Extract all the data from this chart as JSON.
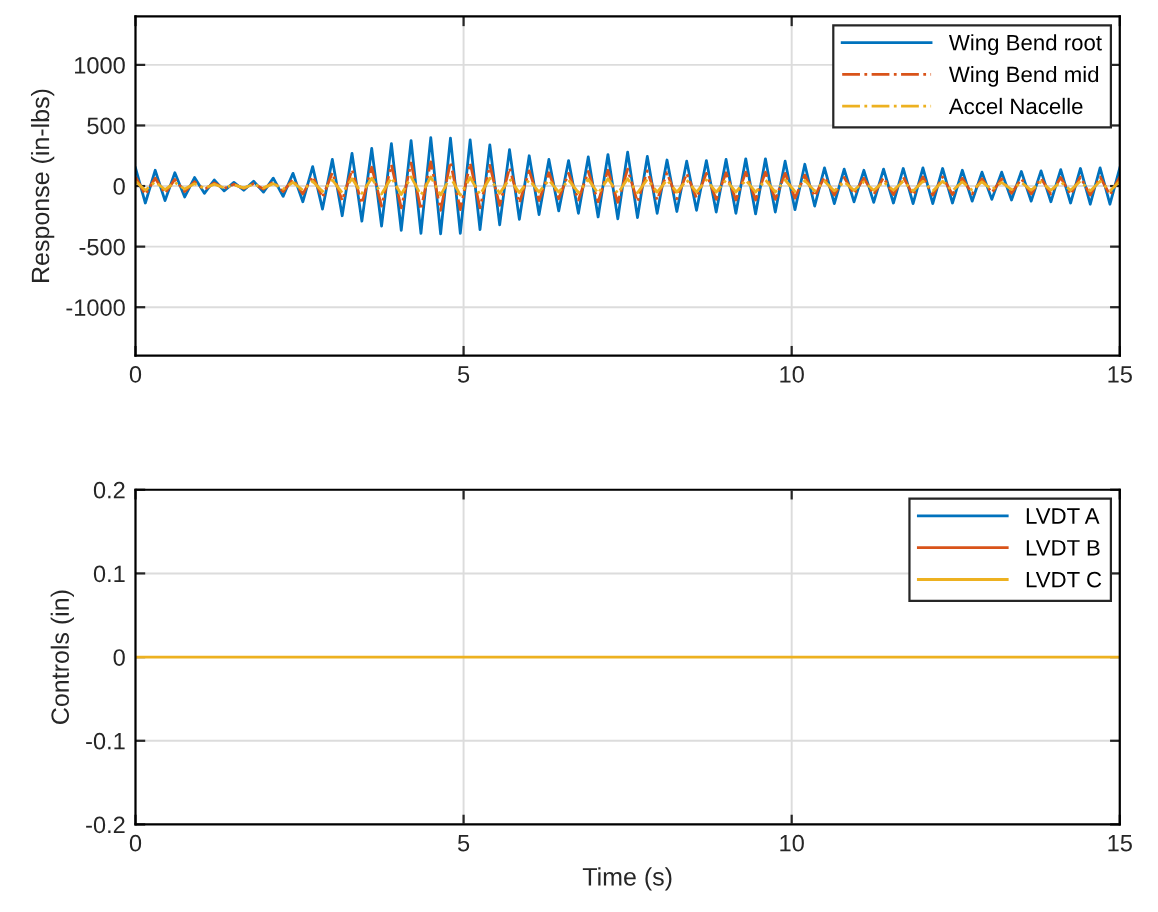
{
  "chart_data": [
    {
      "type": "line",
      "ylabel": "Response (in-lbs)",
      "xlim": [
        0,
        15
      ],
      "xticks": [
        0,
        5,
        10,
        15
      ],
      "ylim": [
        -1400,
        1400
      ],
      "yticks": [
        -1000,
        -500,
        0,
        500,
        1000
      ],
      "grid": true,
      "legend": "top right",
      "x": [
        0,
        0.15,
        0.3,
        0.45,
        0.6,
        0.75,
        0.9,
        1.05,
        1.2,
        1.35,
        1.5,
        1.65,
        1.8,
        1.95,
        2.1,
        2.25,
        2.4,
        2.55,
        2.7,
        2.85,
        3,
        3.15,
        3.3,
        3.45,
        3.6,
        3.75,
        3.9,
        4.05,
        4.2,
        4.35,
        4.5,
        4.65,
        4.8,
        4.95,
        5.1,
        5.25,
        5.4,
        5.55,
        5.7,
        5.85,
        6,
        6.15,
        6.3,
        6.45,
        6.6,
        6.75,
        6.9,
        7.05,
        7.2,
        7.35,
        7.5,
        7.65,
        7.8,
        7.95,
        8.1,
        8.25,
        8.4,
        8.55,
        8.7,
        8.85,
        9,
        9.15,
        9.3,
        9.45,
        9.6,
        9.75,
        9.9,
        10.05,
        10.2,
        10.35,
        10.5,
        10.65,
        10.8,
        10.95,
        11.1,
        11.25,
        11.4,
        11.55,
        11.7,
        11.85,
        12,
        12.15,
        12.3,
        12.45,
        12.6,
        12.75,
        12.9,
        13.05,
        13.2,
        13.35,
        13.5,
        13.65,
        13.8,
        13.95,
        14.1,
        14.25,
        14.4,
        14.55,
        14.7,
        14.85,
        15
      ],
      "series": [
        {
          "name": "Wing Bend root",
          "color": "#0072bd",
          "line_style": "solid",
          "values": [
            150,
            -140,
            130,
            -120,
            110,
            -90,
            70,
            -60,
            50,
            -40,
            30,
            -35,
            40,
            -50,
            65,
            -85,
            105,
            -130,
            160,
            -190,
            220,
            -245,
            270,
            -290,
            310,
            -330,
            350,
            -365,
            375,
            -390,
            400,
            -395,
            395,
            -390,
            380,
            -360,
            340,
            -320,
            300,
            -275,
            250,
            -235,
            220,
            -205,
            210,
            -225,
            240,
            -255,
            260,
            -270,
            280,
            -260,
            245,
            -225,
            215,
            -210,
            205,
            -200,
            210,
            -215,
            220,
            -225,
            225,
            -230,
            225,
            -215,
            205,
            -195,
            180,
            -165,
            150,
            -145,
            140,
            -130,
            130,
            -135,
            140,
            -140,
            145,
            -145,
            150,
            -145,
            145,
            -140,
            130,
            -125,
            115,
            -110,
            115,
            -115,
            120,
            -125,
            125,
            -130,
            135,
            -140,
            145,
            -150,
            150,
            -150,
            150
          ]
        },
        {
          "name": "Wing Bend mid",
          "color": "#d95319",
          "line_style": "dashdot",
          "values": [
            75,
            -70,
            65,
            -60,
            55,
            -45,
            35,
            -30,
            25,
            -20,
            15,
            -20,
            20,
            -25,
            35,
            -45,
            55,
            -65,
            80,
            -95,
            110,
            -120,
            135,
            -145,
            155,
            -165,
            175,
            -180,
            190,
            -195,
            200,
            -200,
            200,
            -195,
            190,
            -180,
            170,
            -160,
            150,
            -140,
            125,
            -120,
            110,
            -105,
            105,
            -115,
            120,
            -130,
            130,
            -135,
            140,
            -130,
            125,
            -115,
            110,
            -105,
            105,
            -100,
            105,
            -110,
            110,
            -115,
            115,
            -115,
            115,
            -110,
            105,
            -100,
            90,
            -85,
            75,
            -75,
            70,
            -65,
            65,
            -70,
            70,
            -70,
            75,
            -75,
            75,
            -75,
            75,
            -70,
            65,
            -65,
            60,
            -55,
            60,
            -60,
            60,
            -65,
            65,
            -65,
            70,
            -70,
            75,
            -75,
            75,
            -75,
            75
          ]
        },
        {
          "name": "Accel Nacelle",
          "color": "#edb120",
          "line_style": "dashdot",
          "values": [
            40,
            -35,
            35,
            -30,
            30,
            -25,
            20,
            -20,
            15,
            -15,
            10,
            -15,
            15,
            -15,
            20,
            -25,
            30,
            -35,
            40,
            -45,
            50,
            -55,
            60,
            -60,
            65,
            -65,
            70,
            -70,
            75,
            -75,
            75,
            -75,
            75,
            -75,
            70,
            -70,
            65,
            -60,
            60,
            -55,
            50,
            -50,
            50,
            -50,
            50,
            -55,
            55,
            -60,
            60,
            -60,
            60,
            -55,
            55,
            -50,
            50,
            -50,
            50,
            -50,
            50,
            -50,
            50,
            -50,
            50,
            -50,
            50,
            -50,
            50,
            -45,
            45,
            -40,
            40,
            -40,
            35,
            -35,
            35,
            -35,
            35,
            -35,
            40,
            -40,
            40,
            -40,
            40,
            -40,
            35,
            -35,
            35,
            -30,
            30,
            -30,
            30,
            -35,
            35,
            -35,
            35,
            -35,
            40,
            -40,
            40,
            -40,
            40
          ]
        }
      ]
    },
    {
      "type": "line",
      "xlabel": "Time (s)",
      "ylabel": "Controls (in)",
      "xlim": [
        0,
        15
      ],
      "xticks": [
        0,
        5,
        10,
        15
      ],
      "ylim": [
        -0.2,
        0.2
      ],
      "yticks": [
        -0.2,
        -0.1,
        0,
        0.1,
        0.2
      ],
      "grid": true,
      "legend": "top right",
      "x": [
        0,
        15
      ],
      "series": [
        {
          "name": "LVDT A",
          "color": "#0072bd",
          "line_style": "solid",
          "values": [
            null,
            null
          ]
        },
        {
          "name": "LVDT B",
          "color": "#d95319",
          "line_style": "solid",
          "values": [
            null,
            null
          ]
        },
        {
          "name": "LVDT C",
          "color": "#edb120",
          "line_style": "solid",
          "values": [
            0,
            0
          ]
        }
      ]
    }
  ]
}
